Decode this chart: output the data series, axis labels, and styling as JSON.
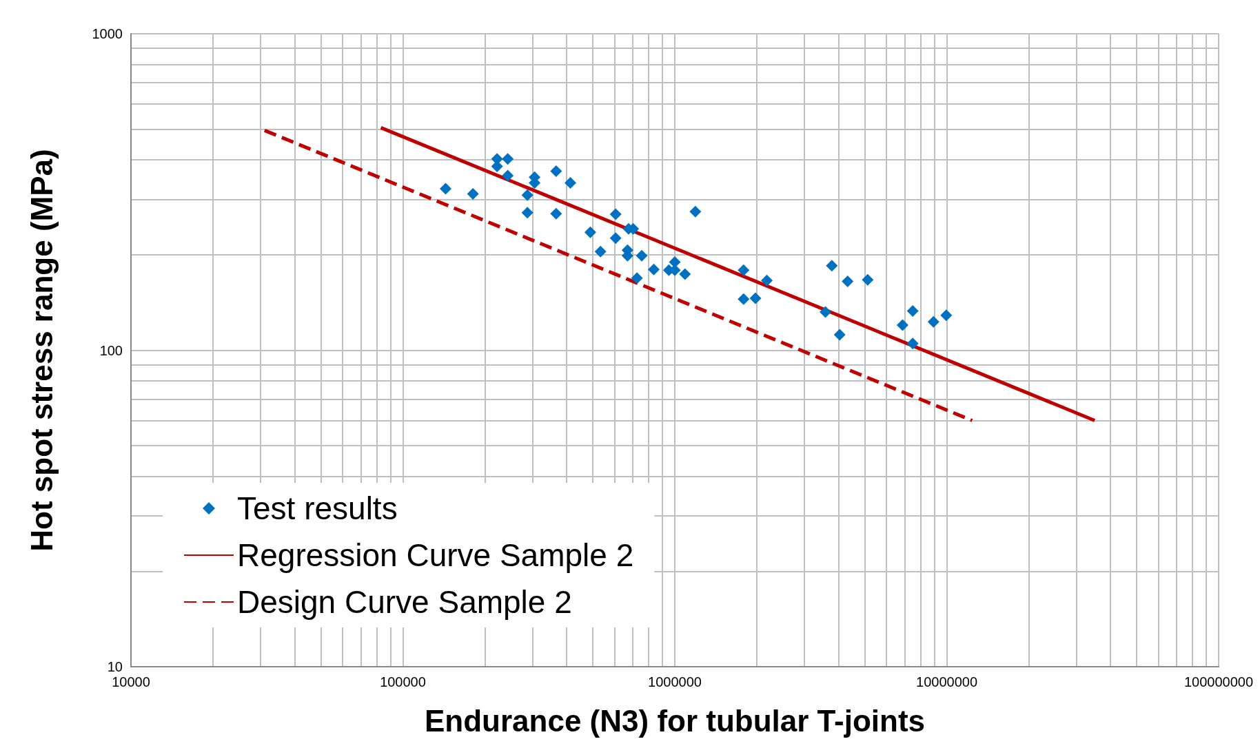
{
  "chart_data": {
    "type": "scatter",
    "xlabel": "Endurance (N3) for tubular T-joints",
    "ylabel": "Hot spot stress range (MPa)",
    "log": "xy",
    "grid": true,
    "legend": "bottom left",
    "xlim": [
      10000,
      100000000
    ],
    "xticks": [
      10000,
      100000,
      1000000,
      10000000,
      100000000
    ],
    "ylim": [
      10,
      1000
    ],
    "yticks": [
      10,
      100,
      1000
    ],
    "series": [
      {
        "name": "Test results",
        "type": "scatter",
        "marker": "diamond",
        "color": "#0070c0",
        "x": [
          143600,
          181000,
          222000,
          222000,
          243000,
          243000,
          287000,
          287000,
          305000,
          305000,
          366000,
          366000,
          413000,
          489000,
          533000,
          606000,
          606000,
          670000,
          670000,
          676000,
          703000,
          726000,
          756000,
          837000,
          951000,
          1000000,
          1000000,
          1090000,
          1190000,
          1790000,
          1790000,
          1980000,
          2180000,
          3580000,
          3780000,
          4040000,
          4320000,
          5120000,
          6880000,
          7500000,
          7500000,
          8940000,
          9960000
        ],
        "values": [
          324,
          312,
          402,
          381,
          402,
          356,
          309,
          272,
          352,
          338,
          368,
          270,
          338,
          236,
          205,
          269,
          226,
          207,
          199,
          242,
          242,
          169,
          199,
          180,
          179,
          190,
          179,
          174,
          274,
          179,
          145,
          146,
          166,
          132,
          185,
          112,
          165,
          167,
          120,
          133,
          105,
          123,
          129
        ]
      },
      {
        "name": "Regression Curve Sample 2",
        "type": "line",
        "marker": "none",
        "line_style": "solid",
        "color": "#c00000",
        "x": [
          83000,
          35000000
        ],
        "values": [
          505,
          60
        ]
      },
      {
        "name": "Design Curve Sample 2",
        "type": "line",
        "marker": "none",
        "line_style": "dashed",
        "color": "#c00000",
        "x": [
          31000,
          12400000
        ],
        "values": [
          495,
          60
        ]
      }
    ]
  }
}
